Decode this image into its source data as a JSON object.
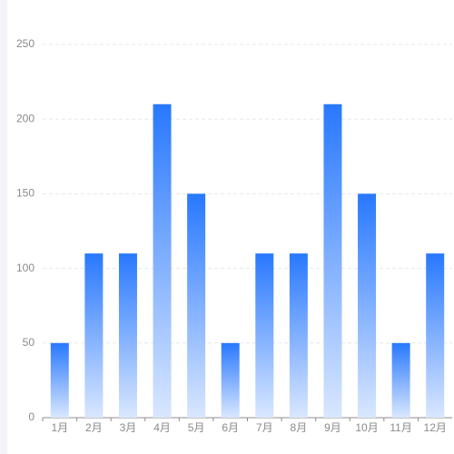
{
  "chart_data": {
    "type": "bar",
    "categories": [
      "1月",
      "2月",
      "3月",
      "4月",
      "5月",
      "6月",
      "7月",
      "8月",
      "9月",
      "10月",
      "11月",
      "12月"
    ],
    "values": [
      50,
      110,
      110,
      210,
      150,
      50,
      110,
      110,
      210,
      150,
      50,
      110
    ],
    "gradient": [
      "#2878ff",
      "#d9e7ff"
    ],
    "ylim": [
      0,
      250
    ],
    "yticks": [
      0,
      50,
      100,
      150,
      200,
      250
    ],
    "grid": true
  }
}
